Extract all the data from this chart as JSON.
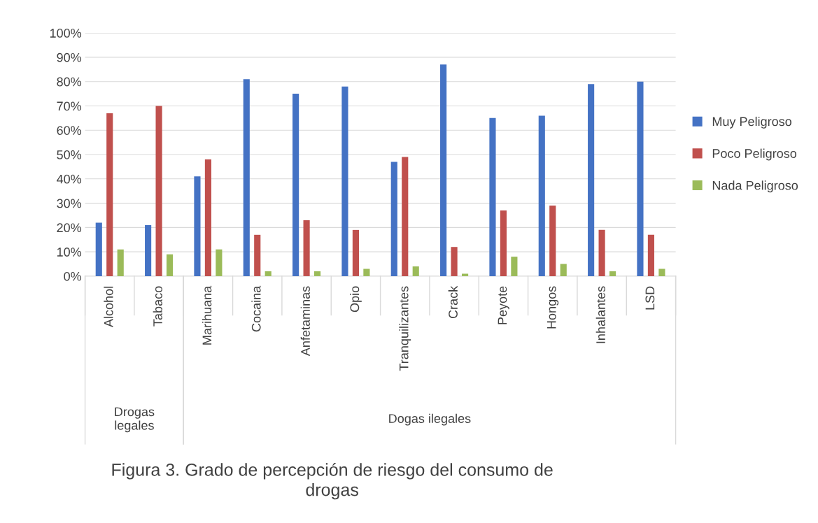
{
  "chart_data": {
    "type": "bar",
    "title": "Figura 3. Grado de percepción de riesgo del consumo de\ndrogas",
    "categories": [
      "Alcohol",
      "Tabaco",
      "Marihuana",
      "Cocaina",
      "Anfetaminas",
      "Opio",
      "Tranquilizantes",
      "Crack",
      "Peyote",
      "Hongos",
      "Inhalantes",
      "LSD"
    ],
    "series": [
      {
        "name": "Muy Peligroso",
        "color": "#4472c4",
        "values": [
          22,
          21,
          41,
          81,
          75,
          78,
          47,
          87,
          65,
          66,
          79,
          80
        ]
      },
      {
        "name": "Poco Peligroso",
        "color": "#c0504d",
        "values": [
          67,
          70,
          48,
          17,
          23,
          19,
          49,
          12,
          27,
          29,
          19,
          17
        ]
      },
      {
        "name": "Nada Peligroso",
        "color": "#9bbb59",
        "values": [
          11,
          9,
          11,
          2,
          2,
          3,
          4,
          1,
          8,
          5,
          2,
          3
        ]
      }
    ],
    "ylim": [
      0,
      100
    ],
    "yticks": [
      {
        "value": 0,
        "label": "0%"
      },
      {
        "value": 10,
        "label": "10%"
      },
      {
        "value": 20,
        "label": "20%"
      },
      {
        "value": 30,
        "label": "30%"
      },
      {
        "value": 40,
        "label": "40%"
      },
      {
        "value": 50,
        "label": "50%"
      },
      {
        "value": 60,
        "label": "60%"
      },
      {
        "value": 70,
        "label": "70%"
      },
      {
        "value": 80,
        "label": "80%"
      },
      {
        "value": 90,
        "label": "90%"
      },
      {
        "value": 100,
        "label": "100%"
      }
    ],
    "grid": "y",
    "legend": "right",
    "annotations": [
      "Drogas\nlegales",
      "Dogas ilegales"
    ]
  }
}
